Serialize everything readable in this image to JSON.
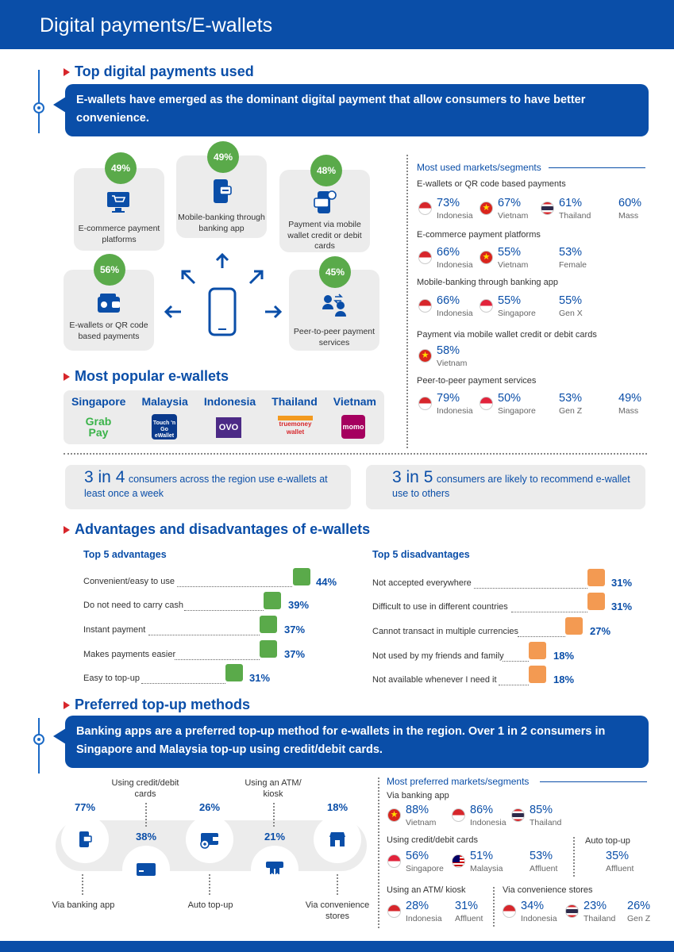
{
  "header": {
    "title": "Digital payments/E-wallets"
  },
  "top_payments": {
    "section_title": "Top digital payments used",
    "callout": "E-wallets have emerged as the dominant digital payment that allow consumers to have better convenience.",
    "items": [
      {
        "pct": "49%",
        "label": "E-commerce payment platforms",
        "icon": "monitor-cart-icon"
      },
      {
        "pct": "49%",
        "label": "Mobile-banking through banking app",
        "icon": "mobile-banking-icon"
      },
      {
        "pct": "48%",
        "label": "Payment via mobile wallet credit or debit cards",
        "icon": "mobile-card-icon"
      },
      {
        "pct": "56%",
        "label": "E-wallets or QR code based payments",
        "icon": "wallet-icon"
      },
      {
        "pct": "45%",
        "label": "Peer-to-peer payment services",
        "icon": "p2p-transfer-icon"
      }
    ]
  },
  "most_used": {
    "title": "Most used markets/segments",
    "groups": [
      {
        "label": "E-wallets or QR code based payments",
        "entries": [
          {
            "value": "73%",
            "name": "Indonesia",
            "flag": "id"
          },
          {
            "value": "67%",
            "name": "Vietnam",
            "flag": "vn"
          },
          {
            "value": "61%",
            "name": "Thailand",
            "flag": "th"
          },
          {
            "value": "60%",
            "name": "Mass",
            "flag": ""
          }
        ]
      },
      {
        "label": "E-commerce payment platforms",
        "entries": [
          {
            "value": "66%",
            "name": "Indonesia",
            "flag": "id"
          },
          {
            "value": "55%",
            "name": "Vietnam",
            "flag": "vn"
          },
          {
            "value": "53%",
            "name": "Female",
            "flag": ""
          }
        ]
      },
      {
        "label": "Mobile-banking through banking app",
        "entries": [
          {
            "value": "66%",
            "name": "Indonesia",
            "flag": "id"
          },
          {
            "value": "55%",
            "name": "Singapore",
            "flag": "sg"
          },
          {
            "value": "55%",
            "name": "Gen X",
            "flag": ""
          }
        ]
      },
      {
        "label": "Payment via mobile wallet credit or debit cards",
        "entries": [
          {
            "value": "58%",
            "name": "Vietnam",
            "flag": "vn"
          }
        ]
      },
      {
        "label": "Peer-to-peer payment services",
        "entries": [
          {
            "value": "79%",
            "name": "Indonesia",
            "flag": "id"
          },
          {
            "value": "50%",
            "name": "Singapore",
            "flag": "sg"
          },
          {
            "value": "53%",
            "name": "Gen Z",
            "flag": ""
          },
          {
            "value": "49%",
            "name": "Mass",
            "flag": ""
          }
        ]
      }
    ]
  },
  "ewallets": {
    "section_title": "Most popular e-wallets",
    "countries": [
      {
        "name": "Singapore",
        "brand": "Grab Pay"
      },
      {
        "name": "Malaysia",
        "brand": "Touch 'n Go eWallet"
      },
      {
        "name": "Indonesia",
        "brand": "OVO"
      },
      {
        "name": "Thailand",
        "brand": "truemoney wallet"
      },
      {
        "name": "Vietnam",
        "brand": "momo"
      }
    ]
  },
  "stats": [
    {
      "num": "3 in 4",
      "text": "consumers across the region use e-wallets at least once a week"
    },
    {
      "num": "3 in 5",
      "text": "consumers are likely to recommend e-wallet use to others"
    }
  ],
  "adv": {
    "section_title": "Advantages and disadvantages of e-wallets",
    "adv_title": "Top 5 advantages",
    "dis_title": "Top 5 disadvantages",
    "advantages": [
      {
        "label": "Convenient/easy to use",
        "pct": "44%"
      },
      {
        "label": "Do not need to carry cash",
        "pct": "39%"
      },
      {
        "label": "Instant payment",
        "pct": "37%"
      },
      {
        "label": "Makes payments easier",
        "pct": "37%"
      },
      {
        "label": "Easy to top-up",
        "pct": "31%"
      }
    ],
    "disadvantages": [
      {
        "label": "Not accepted everywhere",
        "pct": "31%"
      },
      {
        "label": "Difficult to use in different countries",
        "pct": "31%"
      },
      {
        "label": "Cannot transact in multiple currencies",
        "pct": "27%"
      },
      {
        "label": "Not used by my friends and family",
        "pct": "18%"
      },
      {
        "label": "Not available whenever I need it",
        "pct": "18%"
      }
    ]
  },
  "topup": {
    "section_title": "Preferred top-up methods",
    "callout": "Banking apps are a preferred top-up method for e-wallets in the region. Over 1 in 2 consumers in Singapore and Malaysia top-up using credit/debit cards.",
    "methods": [
      {
        "pct": "77%",
        "label": "Via banking app",
        "icon": "banking-app-icon"
      },
      {
        "pct": "38%",
        "label": "Using credit/debit cards",
        "icon": "credit-card-icon"
      },
      {
        "pct": "26%",
        "label": "Auto top-up",
        "icon": "auto-topup-wallet-icon"
      },
      {
        "pct": "21%",
        "label": "Using an ATM/ kiosk",
        "icon": "atm-icon"
      },
      {
        "pct": "18%",
        "label": "Via convenience stores",
        "icon": "store-icon"
      }
    ]
  },
  "most_pref": {
    "title": "Most preferred markets/segments",
    "banking": {
      "label": "Via banking app",
      "entries": [
        {
          "value": "88%",
          "name": "Vietnam",
          "flag": "vn"
        },
        {
          "value": "86%",
          "name": "Indonesia",
          "flag": "id"
        },
        {
          "value": "85%",
          "name": "Thailand",
          "flag": "th"
        }
      ]
    },
    "cards": {
      "label": "Using credit/debit cards",
      "entries": [
        {
          "value": "56%",
          "name": "Singapore",
          "flag": "sg"
        },
        {
          "value": "51%",
          "name": "Malaysia",
          "flag": "my"
        },
        {
          "value": "53%",
          "name": "Affluent",
          "flag": ""
        }
      ]
    },
    "auto": {
      "label": "Auto top-up",
      "entries": [
        {
          "value": "35%",
          "name": "Affluent",
          "flag": ""
        }
      ]
    },
    "atm": {
      "label": "Using an ATM/ kiosk",
      "entries": [
        {
          "value": "28%",
          "name": "Indonesia",
          "flag": "id"
        },
        {
          "value": "31%",
          "name": "Affluent",
          "flag": ""
        }
      ]
    },
    "conv": {
      "label": "Via convenience stores",
      "entries": [
        {
          "value": "34%",
          "name": "Indonesia",
          "flag": "id"
        },
        {
          "value": "23%",
          "name": "Thailand",
          "flag": "th"
        },
        {
          "value": "26%",
          "name": "Gen Z",
          "flag": ""
        }
      ]
    }
  }
}
